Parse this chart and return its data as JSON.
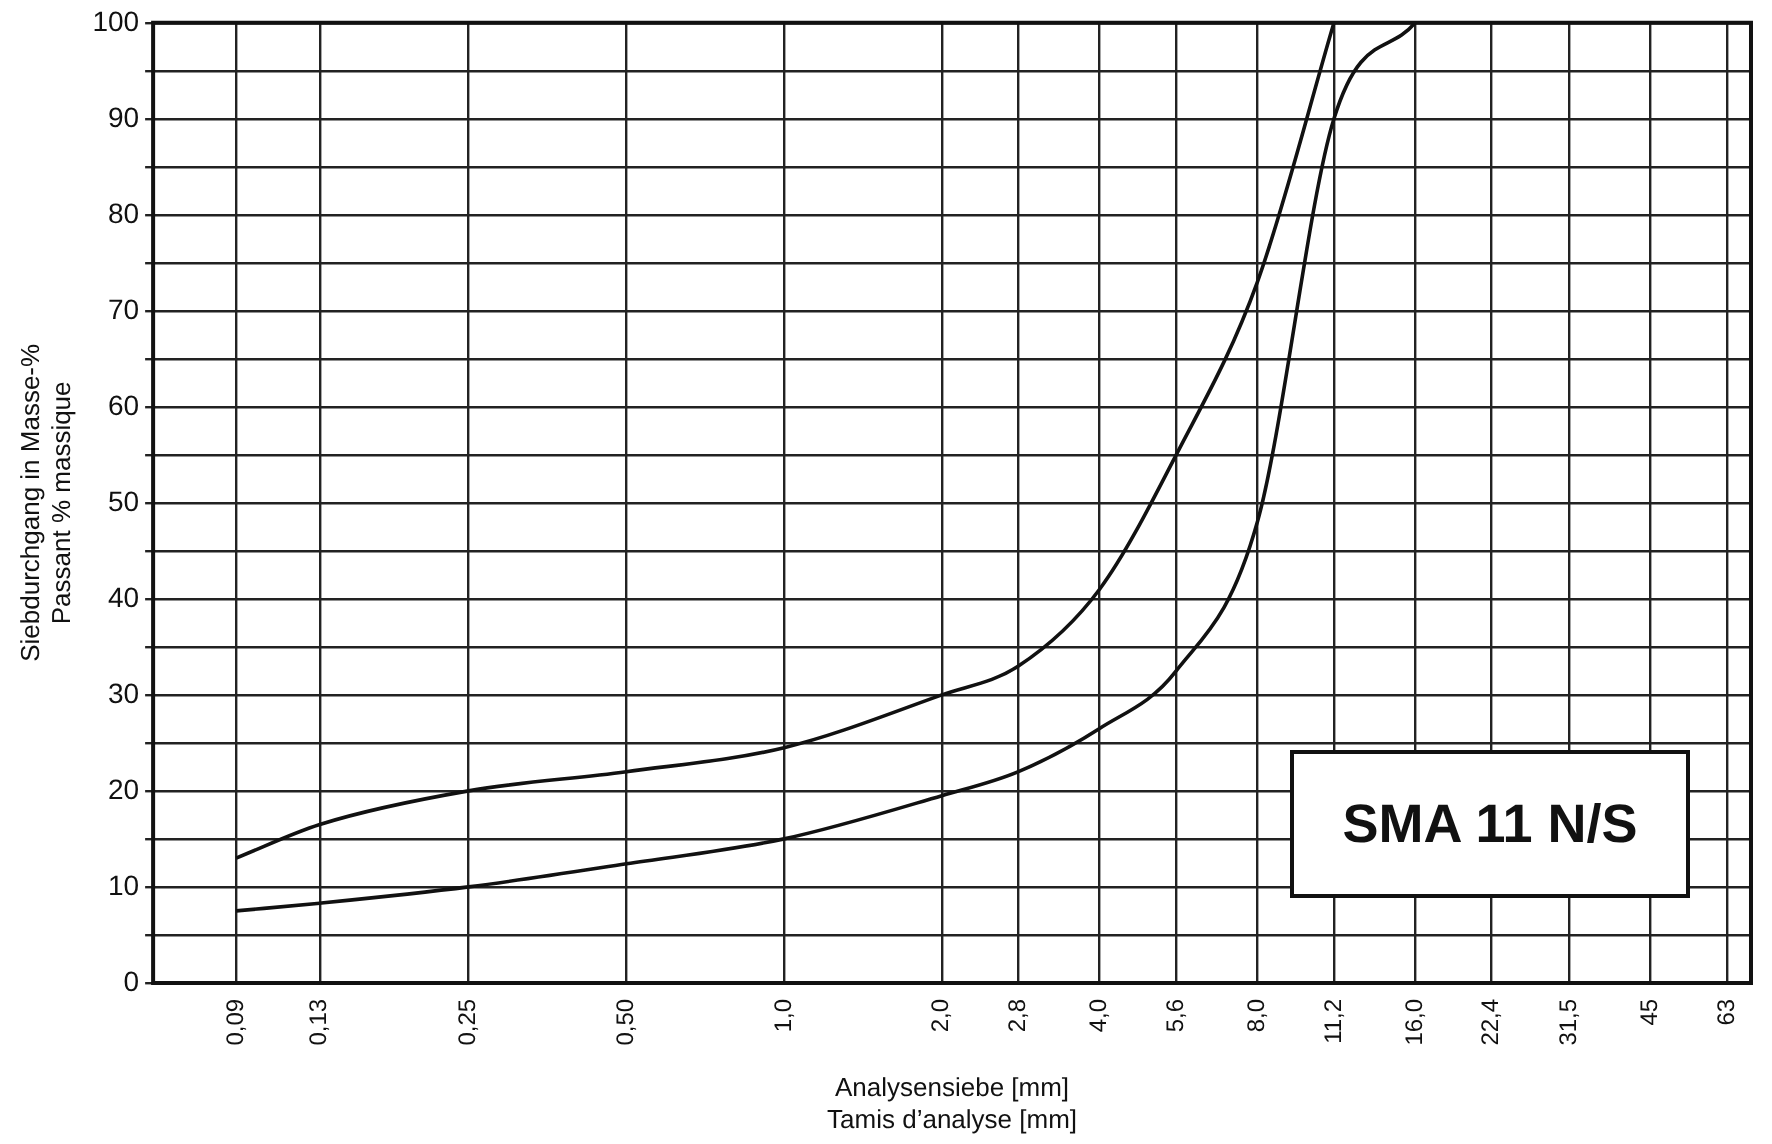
{
  "chart_data": {
    "type": "line",
    "xlabel": "Analysensiebe [mm]\nTamis d’analyse [mm]",
    "ylabel": "Siebdurchgang in Masse-%\nPassant % massique",
    "log": "x",
    "xlim": [
      0.0625,
      70
    ],
    "ylim": [
      0,
      100
    ],
    "xticks": [
      {
        "value": 0.09,
        "label": "0,09"
      },
      {
        "value": 0.13,
        "label": "0,13"
      },
      {
        "value": 0.25,
        "label": "0,25"
      },
      {
        "value": 0.5,
        "label": "0,50"
      },
      {
        "value": 1,
        "label": "1,0"
      },
      {
        "value": 2,
        "label": "2,0"
      },
      {
        "value": 2.8,
        "label": "2,8"
      },
      {
        "value": 4,
        "label": "4,0"
      },
      {
        "value": 5.6,
        "label": "5,6"
      },
      {
        "value": 8,
        "label": "8,0"
      },
      {
        "value": 11.2,
        "label": "11,2"
      },
      {
        "value": 16,
        "label": "16,0"
      },
      {
        "value": 22.4,
        "label": "22,4"
      },
      {
        "value": 31.5,
        "label": "31,5"
      },
      {
        "value": 45,
        "label": "45"
      },
      {
        "value": 63,
        "label": "63"
      }
    ],
    "yticks": [
      0,
      {
        "value": 5,
        "label": null
      },
      10,
      {
        "value": 15,
        "label": null
      },
      20,
      {
        "value": 25,
        "label": null
      },
      30,
      {
        "value": 35,
        "label": null
      },
      40,
      {
        "value": 45,
        "label": null
      },
      50,
      {
        "value": 55,
        "label": null
      },
      60,
      {
        "value": 65,
        "label": null
      },
      70,
      {
        "value": 75,
        "label": null
      },
      80,
      {
        "value": 85,
        "label": null
      },
      90,
      {
        "value": 95,
        "label": null
      },
      100
    ],
    "grid": true,
    "legend": false,
    "marker": "none",
    "line_style": "solid",
    "series": [
      {
        "color": "#111111",
        "x": [
          0.09,
          0.13,
          0.25,
          0.5,
          1,
          2,
          2.8,
          4,
          5.6,
          8,
          11.2
        ],
        "values": [
          13,
          16.5,
          20,
          22,
          24.5,
          30,
          33,
          41,
          55,
          73,
          100
        ]
      },
      {
        "color": "#111111",
        "x": [
          0.09,
          0.13,
          0.25,
          0.5,
          1,
          2,
          2.8,
          4,
          5.6,
          8,
          11.2,
          16
        ],
        "values": [
          7.5,
          8.3,
          10,
          12.4,
          15,
          19.5,
          22,
          26.5,
          32.5,
          48,
          90,
          100
        ]
      }
    ],
    "annotations": [
      "SMA 11 N/S"
    ]
  }
}
